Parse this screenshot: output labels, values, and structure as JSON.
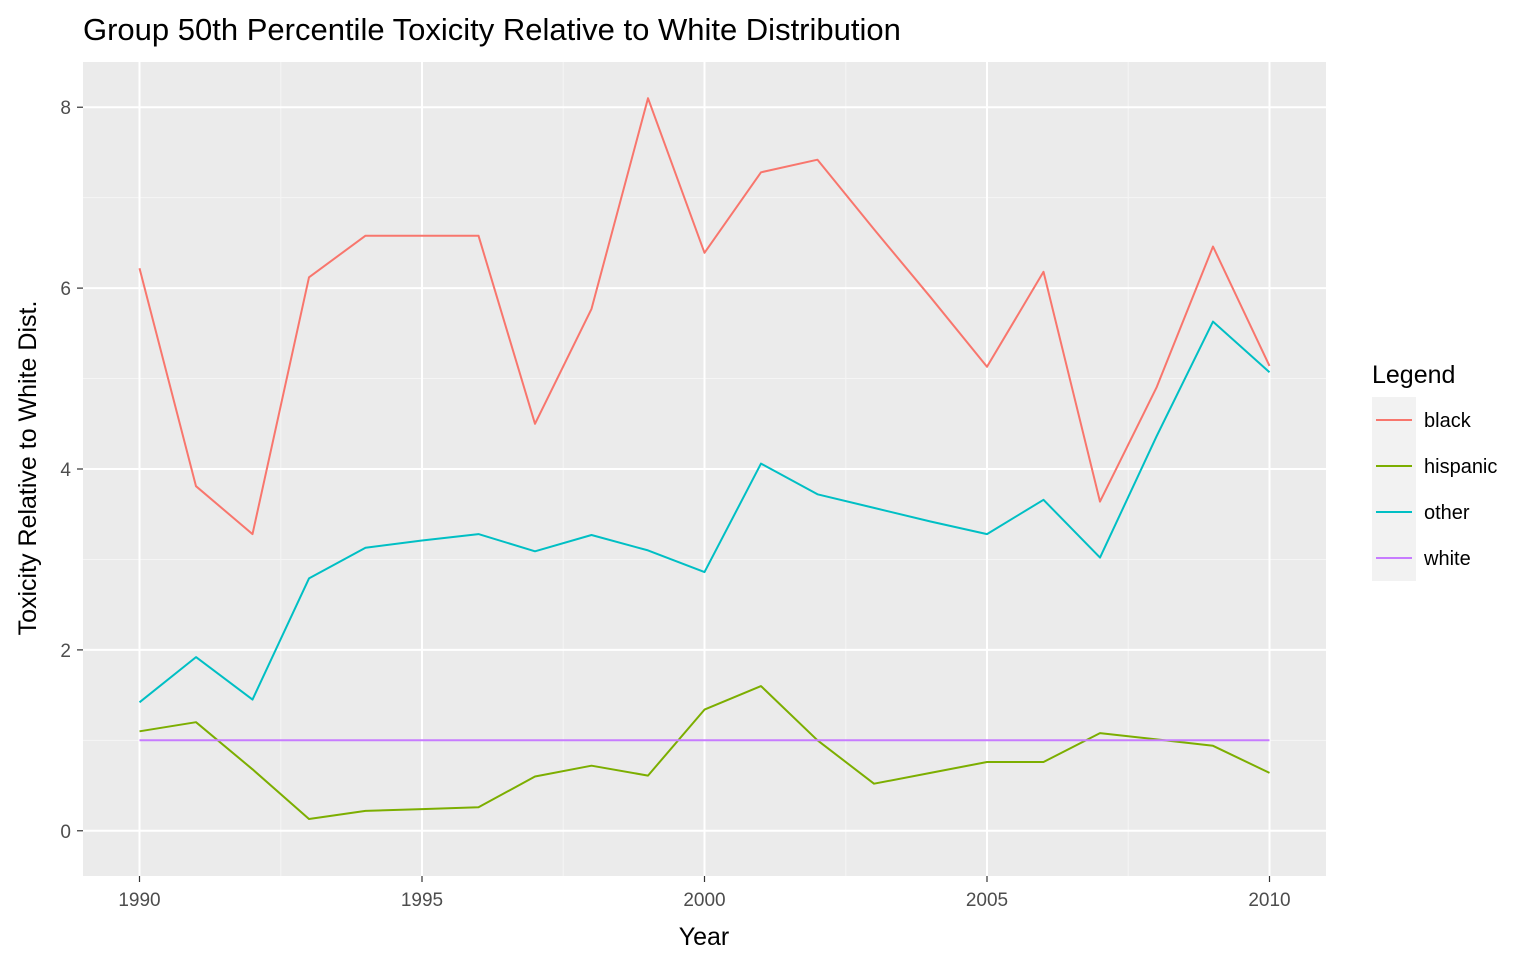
{
  "chart_data": {
    "type": "line",
    "title": "Group 50th Percentile Toxicity Relative to White Distribution",
    "xlabel": "Year",
    "ylabel": "Toxicity Relative to White Dist.",
    "x": [
      1990,
      1991,
      1992,
      1993,
      1994,
      1995,
      1996,
      1997,
      1998,
      1999,
      2000,
      2001,
      2002,
      2003,
      2004,
      2005,
      2006,
      2007,
      2008,
      2009,
      2010
    ],
    "xlim": [
      1989,
      2011
    ],
    "ylim": [
      -0.5,
      8.5
    ],
    "x_ticks": [
      "1990",
      "1995",
      "2000",
      "2005",
      "2010"
    ],
    "y_ticks": [
      "0",
      "2",
      "4",
      "6",
      "8"
    ],
    "grid": true,
    "legend": {
      "title": "Legend",
      "position": "right"
    },
    "series": [
      {
        "name": "black",
        "color": "#F8766D",
        "values": [
          6.22,
          3.81,
          3.28,
          6.12,
          6.58,
          6.58,
          6.58,
          4.5,
          5.77,
          8.1,
          6.39,
          7.28,
          7.42,
          6.65,
          5.9,
          5.13,
          6.18,
          3.64,
          4.9,
          6.46,
          5.14
        ]
      },
      {
        "name": "hispanic",
        "color": "#7CAE00",
        "values": [
          1.1,
          1.2,
          0.68,
          0.13,
          0.22,
          0.24,
          0.26,
          0.6,
          0.72,
          0.61,
          1.34,
          1.6,
          1.0,
          0.52,
          0.64,
          0.76,
          0.76,
          1.08,
          1.01,
          0.94,
          0.64
        ]
      },
      {
        "name": "other",
        "color": "#00BFC4",
        "values": [
          1.42,
          1.92,
          1.45,
          2.79,
          3.13,
          3.21,
          3.28,
          3.09,
          3.27,
          3.1,
          2.86,
          4.06,
          3.72,
          3.57,
          3.42,
          3.28,
          3.66,
          3.02,
          4.36,
          5.63,
          5.07
        ]
      },
      {
        "name": "white",
        "color": "#C77CFF",
        "values": [
          1.0,
          1.0,
          1.0,
          1.0,
          1.0,
          1.0,
          1.0,
          1.0,
          1.0,
          1.0,
          1.0,
          1.0,
          1.0,
          1.0,
          1.0,
          1.0,
          1.0,
          1.0,
          1.0,
          1.0,
          1.0
        ]
      }
    ]
  }
}
